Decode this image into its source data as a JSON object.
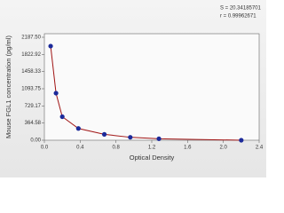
{
  "chart_data": {
    "type": "scatter",
    "x_label": "Optical Density",
    "y_label": "Mouse FGL1 concentration (pg/ml)",
    "annotations": [
      "S = 20.34185701",
      "r = 0.99962671"
    ],
    "x": [
      0.07,
      0.13,
      0.2,
      0.38,
      0.67,
      0.96,
      1.28,
      2.2
    ],
    "values": [
      2000,
      1000,
      500,
      250,
      125,
      62.5,
      31.25,
      0
    ],
    "color": "#1c2a9a",
    "line_color": "#a01414",
    "xlim": [
      0,
      2.4
    ],
    "xticks": [
      {
        "value": 0,
        "label": "0.0"
      },
      0.4,
      0.8,
      1.2,
      1.6,
      {
        "value": 2,
        "label": "2.0"
      },
      2.4
    ],
    "ylim": [
      0,
      2187.5
    ],
    "yticks": [
      {
        "value": 0,
        "label": "0.00"
      },
      364.58,
      729.17,
      1093.75,
      1458.33,
      1822.92,
      {
        "value": 2187.5,
        "label": "2187.50"
      }
    ]
  }
}
